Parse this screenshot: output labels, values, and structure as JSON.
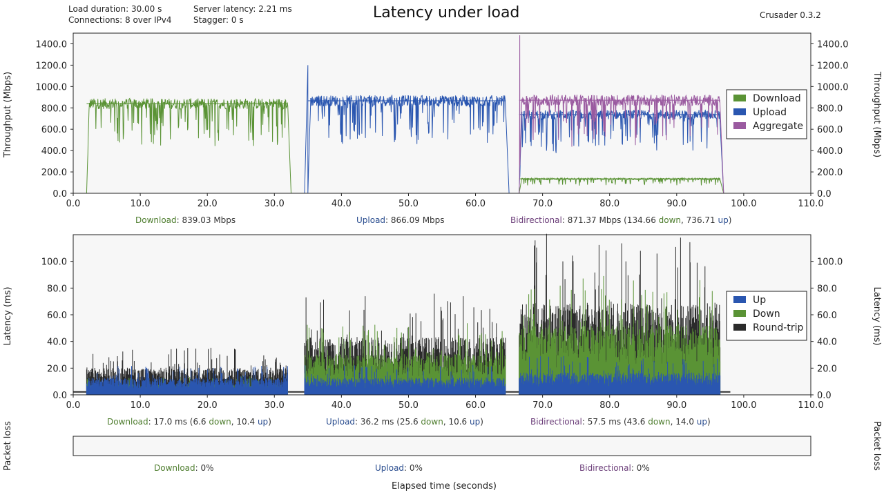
{
  "header": {
    "title": "Latency under load",
    "version": "Crusader 0.3.2",
    "load_duration": "Load duration: 30.00 s",
    "connections": "Connections: 8 over IPv4",
    "server_latency": "Server latency: 2.21 ms",
    "stagger": "Stagger: 0 s"
  },
  "colors": {
    "download": "#5a9335",
    "upload": "#2a56b0",
    "aggregate": "#9a5aa0",
    "roundtrip": "#2b2b2b",
    "plot_bg": "#f7f7f7"
  },
  "chart_data": [
    {
      "type": "line",
      "ylabel": "Throughput (Mbps)",
      "xlim": [
        0,
        110
      ],
      "ylim": [
        0,
        1500
      ],
      "xticks": [
        "0.0",
        "10.0",
        "20.0",
        "30.0",
        "40.0",
        "50.0",
        "60.0",
        "70.0",
        "80.0",
        "90.0",
        "100.0",
        "110.0"
      ],
      "yticks": [
        "0.0",
        "200.0",
        "400.0",
        "600.0",
        "800.0",
        "1000.0",
        "1200.0",
        "1400.0"
      ],
      "legend": {
        "position": "right",
        "entries": [
          "Download",
          "Upload",
          "Aggregate"
        ]
      },
      "segments": [
        {
          "series": "Download",
          "start": 2,
          "end": 32,
          "mean": 839.03
        },
        {
          "series": "Upload",
          "start": 35,
          "end": 64.5,
          "mean": 866.09
        },
        {
          "series": "Upload",
          "start": 66.5,
          "end": 96.5,
          "mean": 736.71
        },
        {
          "series": "Download",
          "start": 66.5,
          "end": 96.5,
          "mean": 134.66
        },
        {
          "series": "Aggregate",
          "start": 66.5,
          "end": 96.5,
          "mean": 871.37
        }
      ],
      "peaks": [
        {
          "series": "Upload",
          "x": 35.0,
          "y": 1200
        },
        {
          "series": "Aggregate",
          "x": 66.6,
          "y": 1480
        }
      ]
    },
    {
      "type": "area",
      "ylabel": "Latency (ms)",
      "xlim": [
        0,
        110
      ],
      "ylim": [
        0,
        120
      ],
      "xticks": [
        "0.0",
        "10.0",
        "20.0",
        "30.0",
        "40.0",
        "50.0",
        "60.0",
        "70.0",
        "80.0",
        "90.0",
        "100.0",
        "110.0"
      ],
      "yticks": [
        "0.0",
        "20.0",
        "40.0",
        "60.0",
        "80.0",
        "100.0"
      ],
      "legend": {
        "position": "right",
        "entries": [
          "Up",
          "Down",
          "Round-trip"
        ]
      },
      "segments": [
        {
          "start": 2,
          "end": 32,
          "roundtrip": 17.0,
          "down": 6.6,
          "up": 10.4
        },
        {
          "start": 34.5,
          "end": 64.5,
          "roundtrip": 36.2,
          "down": 25.6,
          "up": 10.6
        },
        {
          "start": 66.5,
          "end": 96.5,
          "roundtrip": 57.5,
          "down": 43.6,
          "up": 14.0
        }
      ],
      "idle_latency": 2.21,
      "idle_range": [
        0,
        98
      ]
    },
    {
      "type": "bar",
      "ylabel": "Packet loss",
      "values": [
        0,
        0,
        0
      ]
    }
  ],
  "throughput_summary": {
    "download_label": "Download",
    "download_value": ": 839.03 Mbps",
    "upload_label": "Upload",
    "upload_value": ": 866.09 Mbps",
    "bidir_label": "Bidirectional",
    "bidir_value_a": ": 871.37 Mbps (134.66 ",
    "bidir_down": "down",
    "bidir_value_b": ", 736.71 ",
    "bidir_up": "up",
    "bidir_close": ")"
  },
  "latency_summary": {
    "download_label": "Download",
    "download_value_a": ": 17.0 ms  (6.6 ",
    "download_down": "down",
    "download_value_b": ", 10.4 ",
    "download_up": "up",
    "download_close": ")",
    "upload_label": "Upload",
    "upload_value_a": ": 36.2 ms  (25.6 ",
    "upload_down": "down",
    "upload_value_b": ", 10.6 ",
    "upload_up": "up",
    "upload_close": ")",
    "bidir_label": "Bidirectional",
    "bidir_value_a": ": 57.5 ms  (43.6 ",
    "bidir_down": "down",
    "bidir_value_b": ", 14.0 ",
    "bidir_up": "up",
    "bidir_close": ")"
  },
  "loss_summary": {
    "download_label": "Download",
    "download_value": ": 0%",
    "upload_label": "Upload",
    "upload_value": ": 0%",
    "bidir_label": "Bidirectional",
    "bidir_value": ": 0%"
  },
  "xlabel": "Elapsed time (seconds)"
}
